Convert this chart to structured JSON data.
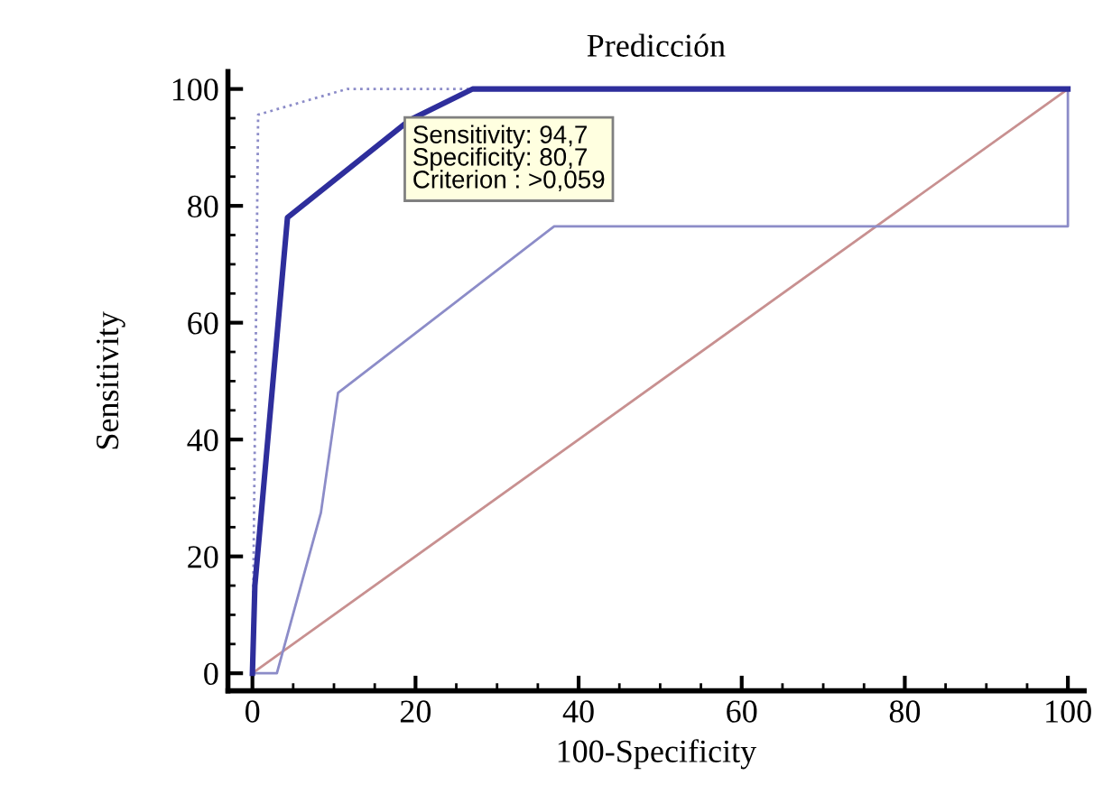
{
  "chart_data": {
    "type": "line",
    "title": "Predicción",
    "xlabel": "100-Specificity",
    "ylabel": "Sensitivity",
    "xlim": [
      -3,
      102
    ],
    "ylim": [
      -3,
      103
    ],
    "xticks": [
      0,
      20,
      40,
      60,
      80,
      100
    ],
    "yticks": [
      0,
      20,
      40,
      60,
      80,
      100
    ],
    "grid": false,
    "legend": false,
    "marker": "none",
    "series": [
      {
        "color": "#c89090",
        "line_style": "solid",
        "x": [
          0,
          100
        ],
        "values": [
          0,
          100
        ]
      },
      {
        "color": "#8c8cc8",
        "line_style": "dotted",
        "x": [
          0,
          0.7,
          11.6,
          100
        ],
        "values": [
          0,
          95.6,
          100,
          100
        ]
      },
      {
        "color": "#8c8cc8",
        "line_style": "solid",
        "x": [
          0,
          3,
          8.4,
          10.5,
          37,
          100,
          100
        ],
        "values": [
          0,
          0,
          27.5,
          48,
          76.5,
          76.5,
          100
        ]
      },
      {
        "color": "#2e2e9c",
        "line_style": "solid",
        "x": [
          0,
          0.3,
          4.3,
          19.3,
          27,
          100
        ],
        "values": [
          0,
          15,
          78,
          94.7,
          100,
          100
        ]
      }
    ],
    "annotations": [
      {
        "text": "Sensitivity: 94,7\nSpecificity: 80,7\nCriterion : >0,059",
        "x": 19.3,
        "y": 94.7
      }
    ]
  }
}
